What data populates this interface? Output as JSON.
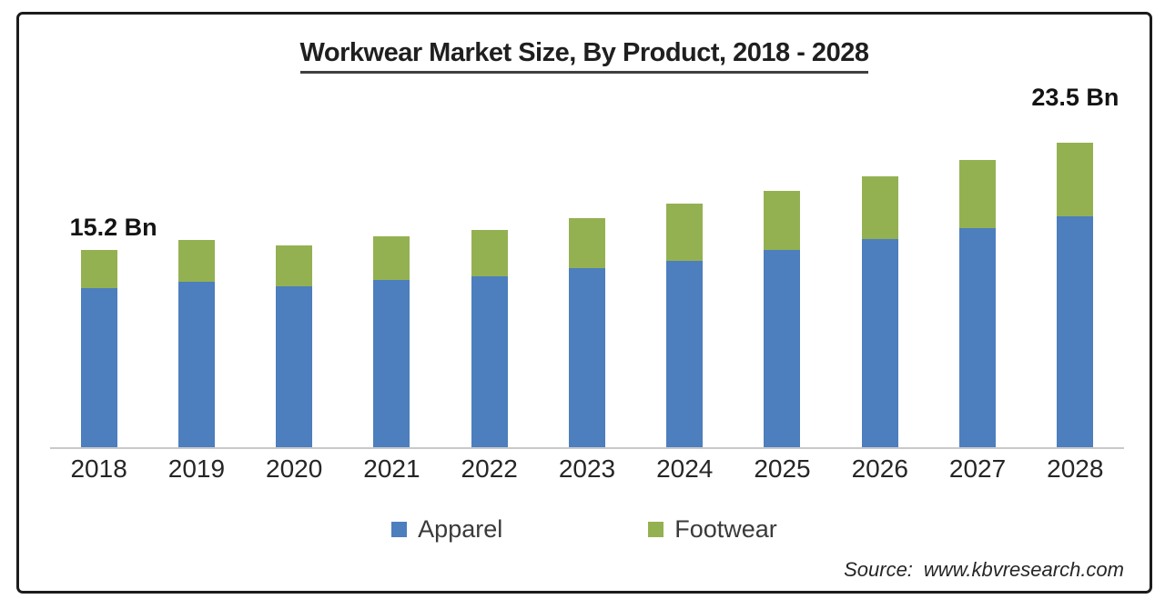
{
  "title": "Workwear Market Size, By Product, 2018 - 2028",
  "legend": [
    {
      "label": "Apparel",
      "color": "#4d7ebd"
    },
    {
      "label": "Footwear",
      "color": "#94b152"
    }
  ],
  "source": {
    "prefix": "Source:",
    "text": "www.kbvresearch.com"
  },
  "colors": {
    "apparel": "#4d7ebd",
    "footwear": "#94b152",
    "axis_line": "#c9c9c9",
    "frame_border": "#1c1c1c",
    "text": "#262626"
  },
  "chart_data": {
    "type": "bar",
    "stacked": true,
    "title": "Workwear Market Size, By Product, 2018 - 2028",
    "unit": "USD Bn",
    "categories": [
      "2018",
      "2019",
      "2020",
      "2021",
      "2022",
      "2023",
      "2024",
      "2025",
      "2026",
      "2027",
      "2028"
    ],
    "series": [
      {
        "name": "Apparel",
        "color": "#4d7ebd",
        "values": [
          12.3,
          12.8,
          12.4,
          12.9,
          13.2,
          13.8,
          14.4,
          15.2,
          16.1,
          16.9,
          17.8
        ]
      },
      {
        "name": "Footwear",
        "color": "#94b152",
        "values": [
          2.9,
          3.2,
          3.2,
          3.4,
          3.6,
          3.9,
          4.4,
          4.6,
          4.8,
          5.3,
          5.7
        ]
      }
    ],
    "totals": [
      15.2,
      16.0,
      15.6,
      16.3,
      16.8,
      17.7,
      18.8,
      19.8,
      20.9,
      22.2,
      23.5
    ],
    "annotations": [
      {
        "category_index": 0,
        "text": "15.2 Bn"
      },
      {
        "category_index": 10,
        "text": "23.5 Bn"
      }
    ],
    "ylim": [
      0,
      25
    ],
    "grid": false,
    "y_axis_visible": false,
    "legend_position": "bottom"
  }
}
